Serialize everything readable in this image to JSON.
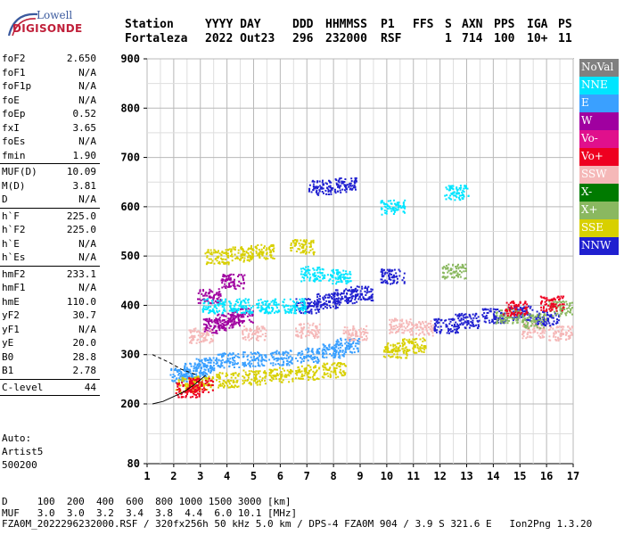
{
  "logo": {
    "line1": "Lowell",
    "line2": "DIGISONDE"
  },
  "header": {
    "labels": [
      "Station",
      "YYYY DAY",
      "DDD",
      "HHMMSS",
      "P1",
      "FFS",
      "S",
      "AXN",
      "PPS",
      "IGA",
      "PS"
    ],
    "values": [
      "Fortaleza",
      "2022 Out23",
      "296",
      "232000",
      "RSF",
      "",
      "1",
      "714",
      "100",
      "10+",
      "11"
    ]
  },
  "params": {
    "group1": [
      {
        "name": "foF2",
        "value": "2.650"
      },
      {
        "name": "foF1",
        "value": "N/A"
      },
      {
        "name": "foF1p",
        "value": "N/A"
      },
      {
        "name": "foE",
        "value": "N/A"
      },
      {
        "name": "foEp",
        "value": "0.52"
      },
      {
        "name": "fxI",
        "value": "3.65"
      },
      {
        "name": "foEs",
        "value": "N/A"
      },
      {
        "name": "fmin",
        "value": "1.90"
      }
    ],
    "group2": [
      {
        "name": "MUF(D)",
        "value": "10.09"
      },
      {
        "name": "M(D)",
        "value": "3.81"
      },
      {
        "name": "D",
        "value": "N/A"
      }
    ],
    "group3": [
      {
        "name": "h`F",
        "value": "225.0"
      },
      {
        "name": "h`F2",
        "value": "225.0"
      },
      {
        "name": "h`E",
        "value": "N/A"
      },
      {
        "name": "h`Es",
        "value": "N/A"
      }
    ],
    "group4": [
      {
        "name": "hmF2",
        "value": "233.1"
      },
      {
        "name": "hmF1",
        "value": "N/A"
      },
      {
        "name": "hmE",
        "value": "110.0"
      },
      {
        "name": "yF2",
        "value": "30.7"
      },
      {
        "name": "yF1",
        "value": "N/A"
      },
      {
        "name": "yE",
        "value": "20.0"
      },
      {
        "name": "B0",
        "value": "28.8"
      },
      {
        "name": "B1",
        "value": "2.78"
      }
    ],
    "group5": [
      {
        "name": "C-level",
        "value": "44"
      }
    ]
  },
  "auto": {
    "line1": "Auto:",
    "line2": "Artist5",
    "line3": "500200"
  },
  "legend": [
    {
      "label": "NoVal",
      "color": "#808080"
    },
    {
      "label": "NNE",
      "color": "#00e5ff"
    },
    {
      "label": "E",
      "color": "#3aa0ff"
    },
    {
      "label": "W",
      "color": "#a000a0"
    },
    {
      "label": "Vo-",
      "color": "#e0108c"
    },
    {
      "label": "Vo+",
      "color": "#ee0020"
    },
    {
      "label": "SSW",
      "color": "#f5b8b8"
    },
    {
      "label": "X-",
      "color": "#007a00"
    },
    {
      "label": "X+",
      "color": "#8ab860"
    },
    {
      "label": "SSE",
      "color": "#d8d000"
    },
    {
      "label": "NNW",
      "color": "#2020d0"
    }
  ],
  "chart_data": {
    "type": "scatter",
    "title": "",
    "xlabel": "",
    "ylabel": "",
    "xlim": [
      1,
      17
    ],
    "ylim": [
      80,
      900
    ],
    "x_ticks": [
      1,
      2,
      3,
      4,
      5,
      6,
      7,
      8,
      9,
      10,
      11,
      12,
      13,
      14,
      15,
      16,
      17
    ],
    "y_ticks": [
      80,
      200,
      300,
      400,
      500,
      600,
      700,
      800,
      900
    ],
    "grid": true,
    "series": [
      {
        "name": "E",
        "points": [
          [
            3.2,
            280
          ],
          [
            4,
            290
          ],
          [
            5,
            292
          ],
          [
            6,
            295
          ],
          [
            7,
            300
          ],
          [
            8,
            310
          ],
          [
            8.5,
            320
          ],
          [
            2.3,
            260
          ],
          [
            2.8,
            270
          ]
        ]
      },
      {
        "name": "SSE",
        "points": [
          [
            2.5,
            240
          ],
          [
            3,
            245
          ],
          [
            4,
            250
          ],
          [
            5,
            255
          ],
          [
            6,
            260
          ],
          [
            7,
            265
          ],
          [
            8,
            270
          ],
          [
            3.6,
            500
          ],
          [
            4.5,
            505
          ],
          [
            5.3,
            510
          ],
          [
            6.8,
            520
          ],
          [
            10.3,
            310
          ],
          [
            11,
            320
          ]
        ]
      },
      {
        "name": "W",
        "points": [
          [
            3.5,
            360
          ],
          [
            4,
            370
          ],
          [
            4.5,
            380
          ],
          [
            3.3,
            420
          ],
          [
            4.2,
            450
          ]
        ]
      },
      {
        "name": "SSW",
        "points": [
          [
            3,
            340
          ],
          [
            5,
            345
          ],
          [
            7,
            350
          ],
          [
            8.8,
            345
          ],
          [
            10.5,
            360
          ],
          [
            11.3,
            355
          ],
          [
            15.5,
            350
          ],
          [
            16.5,
            345
          ]
        ]
      },
      {
        "name": "NNW",
        "points": [
          [
            7,
            400
          ],
          [
            7.8,
            410
          ],
          [
            8.4,
            420
          ],
          [
            9,
            425
          ],
          [
            10.2,
            460
          ],
          [
            7.5,
            640
          ],
          [
            8.4,
            645
          ],
          [
            12.2,
            360
          ],
          [
            13,
            370
          ],
          [
            14,
            380
          ],
          [
            15,
            385
          ],
          [
            16,
            375
          ]
        ]
      },
      {
        "name": "NNE",
        "points": [
          [
            3.5,
            400
          ],
          [
            4.5,
            400
          ],
          [
            5.5,
            400
          ],
          [
            6.5,
            400
          ],
          [
            7.2,
            465
          ],
          [
            8.2,
            460
          ],
          [
            10.2,
            600
          ],
          [
            12.6,
            630
          ]
        ]
      },
      {
        "name": "X+",
        "points": [
          [
            14.5,
            380
          ],
          [
            15.5,
            370
          ],
          [
            16.5,
            395
          ],
          [
            12.5,
            470
          ]
        ]
      },
      {
        "name": "Vo+",
        "points": [
          [
            2.5,
            230
          ],
          [
            3,
            240
          ],
          [
            14.8,
            395
          ],
          [
            16.2,
            405
          ]
        ]
      }
    ]
  },
  "footer": {
    "line1": "D     100  200  400  600  800 1000 1500 3000 [km]",
    "line2": "MUF   3.0  3.0  3.2  3.4  3.8  4.4  6.0 10.1 [MHz]",
    "line3": "FZA0M_2022296232000.RSF / 320fx256h 50 kHz 5.0 km / DPS-4 FZA0M 904 / 3.9 S 321.6 E   Ion2Png 1.3.20"
  }
}
